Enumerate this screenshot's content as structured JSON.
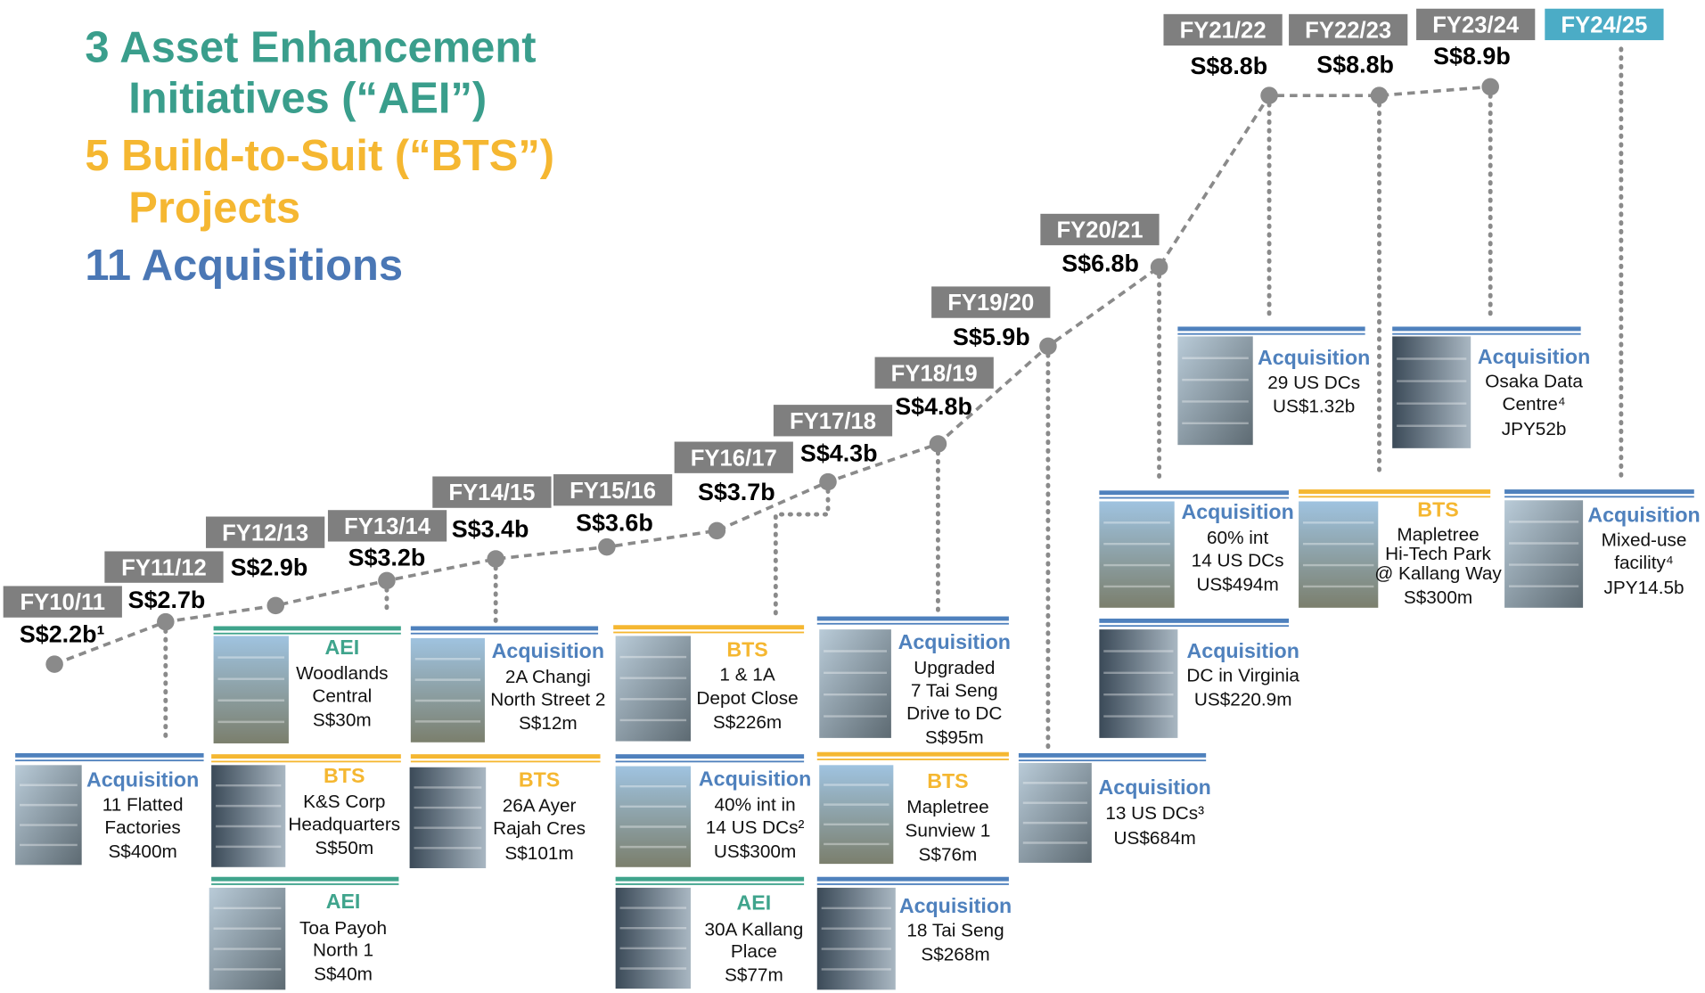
{
  "headline": {
    "aei": [
      "3 Asset Enhancement",
      "Initiatives (“AEI”)"
    ],
    "bts": [
      "5 Build-to-Suit (“BTS”)",
      "Projects"
    ],
    "acquisitions": [
      "11 Acquisitions"
    ]
  },
  "milestones": [
    {
      "year": "FY10/11",
      "value": "S$2.2b¹"
    },
    {
      "year": "FY11/12",
      "value": "S$2.7b"
    },
    {
      "year": "FY12/13",
      "value": "S$2.9b"
    },
    {
      "year": "FY13/14",
      "value": "S$3.2b"
    },
    {
      "year": "FY14/15",
      "value": "S$3.4b"
    },
    {
      "year": "FY15/16",
      "value": "S$3.6b"
    },
    {
      "year": "FY16/17",
      "value": "S$3.7b"
    },
    {
      "year": "FY17/18",
      "value": "S$4.3b"
    },
    {
      "year": "FY18/19",
      "value": "S$4.8b"
    },
    {
      "year": "FY19/20",
      "value": "S$5.9b"
    },
    {
      "year": "FY20/21",
      "value": "S$6.8b"
    },
    {
      "year": "FY21/22",
      "value": "S$8.8b"
    },
    {
      "year": "FY22/23",
      "value": "S$8.8b"
    },
    {
      "year": "FY23/24",
      "value": "S$8.9b"
    },
    {
      "year": "FY24/25"
    }
  ],
  "projects": [
    {
      "tag": "Acquisition",
      "color": "#4f81bd",
      "lines": [
        "11 Flatted",
        "Factories",
        "S$400m"
      ]
    },
    {
      "tag": "AEI",
      "color": "#3fa48c",
      "lines": [
        "Woodlands",
        "Central",
        "S$30m"
      ]
    },
    {
      "tag": "BTS",
      "color": "#f5b731",
      "lines": [
        "K&S Corp",
        "Headquarters",
        "S$50m"
      ]
    },
    {
      "tag": "AEI",
      "color": "#3fa48c",
      "lines": [
        "Toa Payoh",
        "North 1",
        "S$40m"
      ]
    },
    {
      "tag": "Acquisition",
      "color": "#4f81bd",
      "lines": [
        "2A Changi",
        "North Street 2",
        "S$12m"
      ]
    },
    {
      "tag": "BTS",
      "color": "#f5b731",
      "lines": [
        "26A Ayer",
        "Rajah Cres",
        "S$101m"
      ]
    },
    {
      "tag": "BTS",
      "color": "#f5b731",
      "lines": [
        "1 & 1A",
        "Depot Close",
        "S$226m"
      ]
    },
    {
      "tag": "Acquisition",
      "color": "#4f81bd",
      "lines": [
        "40% int in",
        "14 US DCs²",
        "US$300m"
      ]
    },
    {
      "tag": "AEI",
      "color": "#3fa48c",
      "lines": [
        "30A Kallang",
        "Place",
        "S$77m"
      ]
    },
    {
      "tag": "Acquisition",
      "color": "#4f81bd",
      "lines": [
        "Upgraded",
        "7 Tai Seng",
        "Drive to DC",
        "S$95m"
      ]
    },
    {
      "tag": "BTS",
      "color": "#f5b731",
      "lines": [
        "Mapletree",
        "Sunview 1",
        "S$76m"
      ]
    },
    {
      "tag": "Acquisition",
      "color": "#4f81bd",
      "lines": [
        "18 Tai Seng",
        "S$268m"
      ]
    },
    {
      "tag": "Acquisition",
      "color": "#4f81bd",
      "lines": [
        "13 US DCs³",
        "US$684m"
      ]
    },
    {
      "tag": "Acquisition",
      "color": "#4f81bd",
      "lines": [
        "60% int",
        "14 US DCs",
        "US$494m"
      ]
    },
    {
      "tag": "Acquisition",
      "color": "#4f81bd",
      "lines": [
        "DC in Virginia",
        "US$220.9m"
      ]
    },
    {
      "tag": "Acquisition",
      "color": "#4f81bd",
      "lines": [
        "29 US DCs",
        "US$1.32b"
      ]
    },
    {
      "tag": "BTS",
      "color": "#f5b731",
      "lines": [
        "Mapletree",
        "Hi-Tech Park",
        "@ Kallang Way",
        "S$300m"
      ]
    },
    {
      "tag": "Acquisition",
      "color": "#4f81bd",
      "lines": [
        "Osaka Data",
        "Centre⁴",
        "JPY52b"
      ]
    },
    {
      "tag": "Acquisition",
      "color": "#4f81bd",
      "lines": [
        "Mixed-use",
        "facility⁴",
        "JPY14.5b"
      ]
    }
  ]
}
